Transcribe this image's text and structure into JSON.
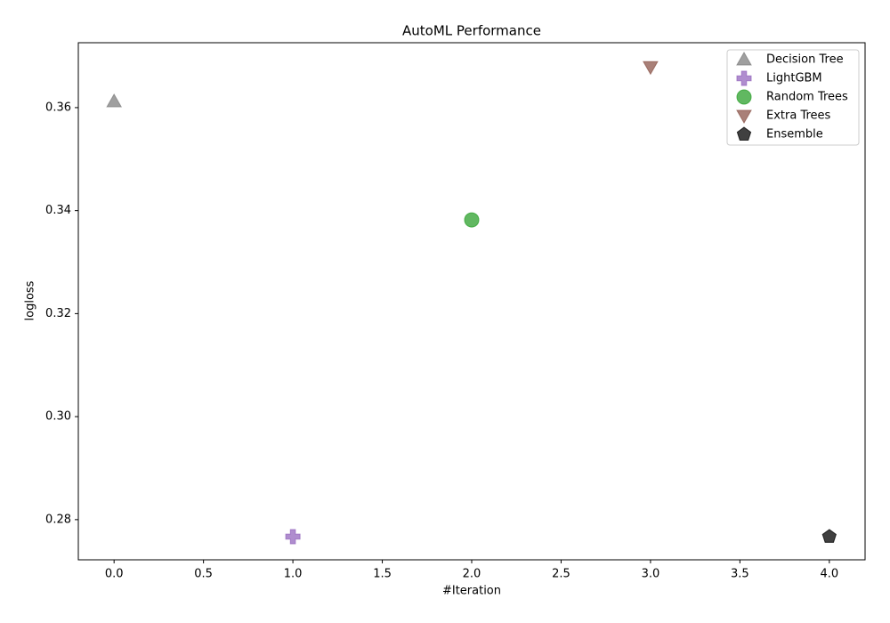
{
  "chart_data": {
    "type": "scatter",
    "title": "AutoML Performance",
    "x_label": "#Iteration",
    "y_label": "logloss",
    "xlim": [
      -0.2,
      4.2
    ],
    "ylim": [
      0.2722,
      0.3726
    ],
    "xticks": [
      {
        "value": 0,
        "label": "0.0"
      },
      {
        "value": 0.5,
        "label": "0.5"
      },
      {
        "value": 1,
        "label": "1.0"
      },
      {
        "value": 1.5,
        "label": "1.5"
      },
      {
        "value": 2,
        "label": "2.0"
      },
      {
        "value": 2.5,
        "label": "2.5"
      },
      {
        "value": 3,
        "label": "3.0"
      },
      {
        "value": 3.5,
        "label": "3.5"
      },
      {
        "value": 4,
        "label": "4.0"
      }
    ],
    "yticks": [
      0.28,
      {
        "value": 0.3,
        "label": "0.30"
      },
      0.32,
      0.34,
      0.36
    ],
    "legend": "upper right",
    "grid": false,
    "series": [
      {
        "name": "Decision Tree",
        "color": "#7f7f7f",
        "marker": "triangle-up",
        "x": [
          0
        ],
        "values": [
          0.3612
        ]
      },
      {
        "name": "LightGBM",
        "color": "#9467bd",
        "marker": "plus",
        "x": [
          1
        ],
        "values": [
          0.2767
        ]
      },
      {
        "name": "Random Trees",
        "color": "#2ca02c",
        "marker": "circle",
        "x": [
          2
        ],
        "values": [
          0.3382
        ]
      },
      {
        "name": "Extra Trees",
        "color": "#8c564b",
        "marker": "triangle-down",
        "x": [
          3
        ],
        "values": [
          0.3679
        ]
      },
      {
        "name": "Ensemble",
        "color": "#000000",
        "marker": "pentagon",
        "x": [
          4
        ],
        "values": [
          0.2767
        ]
      }
    ]
  }
}
